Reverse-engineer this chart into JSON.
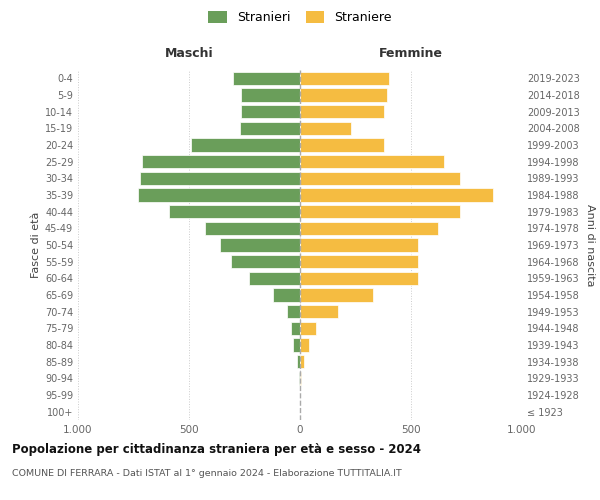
{
  "age_groups": [
    "100+",
    "95-99",
    "90-94",
    "85-89",
    "80-84",
    "75-79",
    "70-74",
    "65-69",
    "60-64",
    "55-59",
    "50-54",
    "45-49",
    "40-44",
    "35-39",
    "30-34",
    "25-29",
    "20-24",
    "15-19",
    "10-14",
    "5-9",
    "0-4"
  ],
  "birth_years": [
    "≤ 1923",
    "1924-1928",
    "1929-1933",
    "1934-1938",
    "1939-1943",
    "1944-1948",
    "1949-1953",
    "1954-1958",
    "1959-1963",
    "1964-1968",
    "1969-1973",
    "1974-1978",
    "1979-1983",
    "1984-1988",
    "1989-1993",
    "1994-1998",
    "1999-2003",
    "2004-2008",
    "2009-2013",
    "2014-2018",
    "2019-2023"
  ],
  "maschi": [
    2,
    2,
    3,
    15,
    30,
    40,
    60,
    120,
    230,
    310,
    360,
    430,
    590,
    730,
    720,
    710,
    490,
    270,
    265,
    265,
    300
  ],
  "femmine": [
    2,
    2,
    5,
    20,
    40,
    70,
    170,
    330,
    530,
    530,
    530,
    620,
    720,
    870,
    720,
    650,
    380,
    230,
    380,
    390,
    400
  ],
  "male_color": "#6a9e5a",
  "female_color": "#f5bc41",
  "background_color": "#ffffff",
  "grid_color": "#cccccc",
  "title": "Popolazione per cittadinanza straniera per età e sesso - 2024",
  "subtitle": "COMUNE DI FERRARA - Dati ISTAT al 1° gennaio 2024 - Elaborazione TUTTITALIA.IT",
  "legend_maschi": "Stranieri",
  "legend_femmine": "Straniere",
  "header_left": "Maschi",
  "header_right": "Femmine",
  "ylabel_left": "Fasce di età",
  "ylabel_right": "Anni di nascita",
  "xlim": 1000,
  "bar_height": 0.8
}
